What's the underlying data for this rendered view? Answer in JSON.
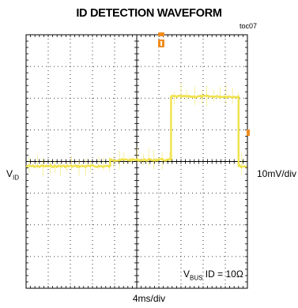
{
  "header": {
    "title": "ID DETECTION WAVEFORM",
    "toc": "toc07"
  },
  "labels": {
    "channel_main": "V",
    "channel_sub": "ID",
    "vertical_scale": "10mV/div",
    "time_scale": "4ms/div",
    "annotation_main": "V",
    "annotation_sub": "BUS",
    "annotation_rest": " ID = 10Ω"
  },
  "colors": {
    "trace": "#f0e24a",
    "marker": "#f08c1e",
    "grid": "#000000"
  },
  "chart_data": {
    "type": "line",
    "title": "ID DETECTION WAVEFORM",
    "grid": true,
    "divisions": {
      "x": 10,
      "y": 8
    },
    "x_unit": "div",
    "y_unit": "div",
    "xlim": [
      0,
      10
    ],
    "ylim": [
      -4,
      4
    ],
    "series": [
      {
        "segments": [
          {
            "x": [
              0.0,
              3.8
            ],
            "y": -0.15
          },
          {
            "x": [
              3.8,
              6.55
            ],
            "y": 0.05
          },
          {
            "x": [
              6.55,
              9.6
            ],
            "y": 2.05
          },
          {
            "x": [
              9.6,
              12.0
            ],
            "y": -0.15
          }
        ]
      }
    ]
  }
}
